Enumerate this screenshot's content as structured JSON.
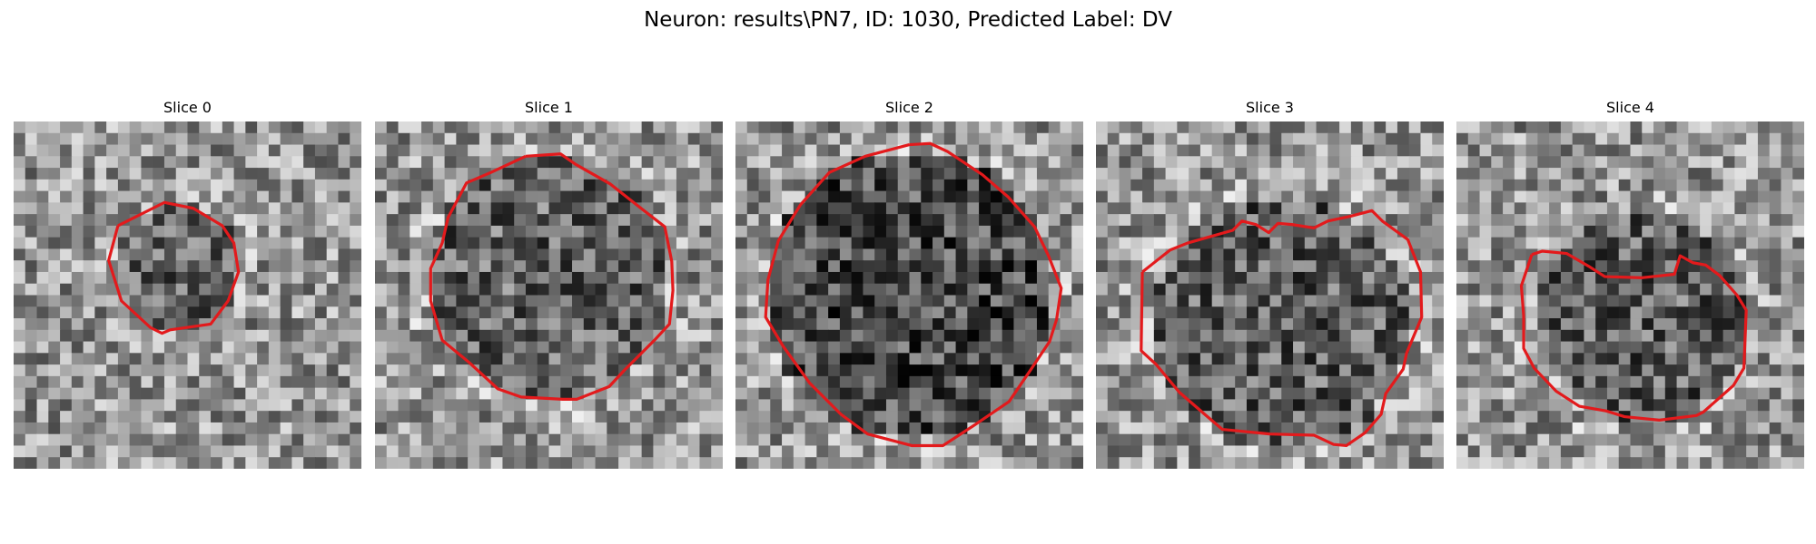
{
  "figure": {
    "title": "Neuron: results\\PN7, ID: 1030, Predicted Label: DV"
  },
  "colors": {
    "contour": "#e31a1c",
    "background": "#ffffff"
  },
  "panels": [
    {
      "title": "Slice 0"
    },
    {
      "title": "Slice 1"
    },
    {
      "title": "Slice 2"
    },
    {
      "title": "Slice 3"
    },
    {
      "title": "Slice 4"
    }
  ]
}
